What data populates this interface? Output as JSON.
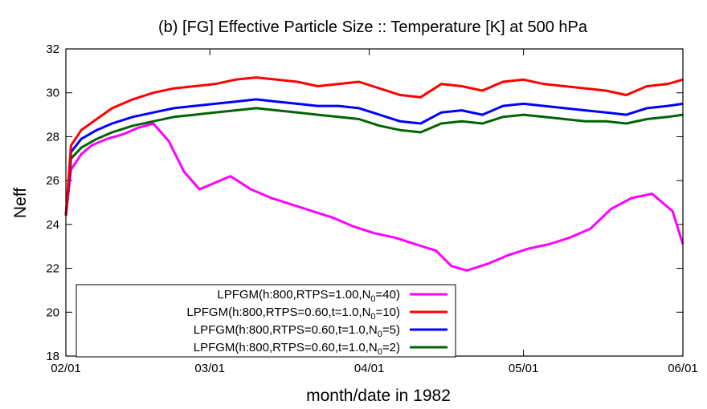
{
  "chart_data": {
    "type": "line",
    "title": "(b) [FG] Effective Particle Size :: Temperature [K] at 500 hPa",
    "xlabel": "month/date in 1982",
    "ylabel": "Neff",
    "xlim": [
      "1982-02-01",
      "1982-06-01"
    ],
    "ylim": [
      18,
      32
    ],
    "yticks": [
      18,
      20,
      22,
      24,
      26,
      28,
      30,
      32
    ],
    "xticks": [
      {
        "date": "1982-02-01",
        "label": "02/01"
      },
      {
        "date": "1982-03-01",
        "label": "03/01"
      },
      {
        "date": "1982-04-01",
        "label": "04/01"
      },
      {
        "date": "1982-05-01",
        "label": "05/01"
      },
      {
        "date": "1982-06-01",
        "label": "06/01"
      }
    ],
    "grid": false,
    "legend_position": "bottom-left",
    "series": [
      {
        "name": "LPFGM(h:800,RTPS=1.00,N",
        "subscript": "0",
        "suffix": "=40)",
        "color": "#ff00ff",
        "x": [
          "1982-02-01",
          "1982-02-02",
          "1982-02-04",
          "1982-02-06",
          "1982-02-09",
          "1982-02-12",
          "1982-02-15",
          "1982-02-18",
          "1982-02-21",
          "1982-02-24",
          "1982-02-27",
          "1982-03-01",
          "1982-03-05",
          "1982-03-09",
          "1982-03-13",
          "1982-03-17",
          "1982-03-21",
          "1982-03-25",
          "1982-03-29",
          "1982-04-02",
          "1982-04-06",
          "1982-04-10",
          "1982-04-14",
          "1982-04-17",
          "1982-04-20",
          "1982-04-24",
          "1982-04-28",
          "1982-05-02",
          "1982-05-06",
          "1982-05-10",
          "1982-05-14",
          "1982-05-18",
          "1982-05-22",
          "1982-05-26",
          "1982-05-30",
          "1982-06-01"
        ],
        "y": [
          24.4,
          26.5,
          27.2,
          27.6,
          27.9,
          28.1,
          28.4,
          28.6,
          27.8,
          26.4,
          25.6,
          25.8,
          26.2,
          25.6,
          25.2,
          24.9,
          24.6,
          24.3,
          23.9,
          23.6,
          23.4,
          23.1,
          22.8,
          22.1,
          21.9,
          22.2,
          22.6,
          22.9,
          23.1,
          23.4,
          23.8,
          24.7,
          25.2,
          25.4,
          24.6,
          23.1
        ]
      },
      {
        "name": "LPFGM(h:800,RTPS=0.60,t=1.0,N",
        "subscript": "0",
        "suffix": "=10)",
        "color": "#ff0000",
        "x": [
          "1982-02-01",
          "1982-02-02",
          "1982-02-04",
          "1982-02-07",
          "1982-02-10",
          "1982-02-14",
          "1982-02-18",
          "1982-02-22",
          "1982-02-26",
          "1982-03-02",
          "1982-03-06",
          "1982-03-10",
          "1982-03-14",
          "1982-03-18",
          "1982-03-22",
          "1982-03-26",
          "1982-03-30",
          "1982-04-03",
          "1982-04-07",
          "1982-04-11",
          "1982-04-15",
          "1982-04-19",
          "1982-04-23",
          "1982-04-27",
          "1982-05-01",
          "1982-05-05",
          "1982-05-09",
          "1982-05-13",
          "1982-05-17",
          "1982-05-21",
          "1982-05-25",
          "1982-05-29",
          "1982-06-01"
        ],
        "y": [
          24.4,
          27.6,
          28.3,
          28.8,
          29.3,
          29.7,
          30.0,
          30.2,
          30.3,
          30.4,
          30.6,
          30.7,
          30.6,
          30.5,
          30.3,
          30.4,
          30.5,
          30.2,
          29.9,
          29.8,
          30.4,
          30.3,
          30.1,
          30.5,
          30.6,
          30.4,
          30.3,
          30.2,
          30.1,
          29.9,
          30.3,
          30.4,
          30.6
        ]
      },
      {
        "name": "LPFGM(h:800,RTPS=0.60,t=1.0,N",
        "subscript": "0",
        "suffix": "=5)",
        "color": "#0000ff",
        "x": [
          "1982-02-01",
          "1982-02-02",
          "1982-02-04",
          "1982-02-07",
          "1982-02-10",
          "1982-02-14",
          "1982-02-18",
          "1982-02-22",
          "1982-02-26",
          "1982-03-02",
          "1982-03-06",
          "1982-03-10",
          "1982-03-14",
          "1982-03-18",
          "1982-03-22",
          "1982-03-26",
          "1982-03-30",
          "1982-04-03",
          "1982-04-07",
          "1982-04-11",
          "1982-04-15",
          "1982-04-19",
          "1982-04-23",
          "1982-04-27",
          "1982-05-01",
          "1982-05-05",
          "1982-05-09",
          "1982-05-13",
          "1982-05-17",
          "1982-05-21",
          "1982-05-25",
          "1982-05-29",
          "1982-06-01"
        ],
        "y": [
          24.4,
          27.3,
          27.9,
          28.3,
          28.6,
          28.9,
          29.1,
          29.3,
          29.4,
          29.5,
          29.6,
          29.7,
          29.6,
          29.5,
          29.4,
          29.4,
          29.3,
          29.0,
          28.7,
          28.6,
          29.1,
          29.2,
          29.0,
          29.4,
          29.5,
          29.4,
          29.3,
          29.2,
          29.1,
          29.0,
          29.3,
          29.4,
          29.5
        ]
      },
      {
        "name": "LPFGM(h:800,RTPS=0.60,t=1.0,N",
        "subscript": "0",
        "suffix": "=2)",
        "color": "#006400",
        "x": [
          "1982-02-01",
          "1982-02-02",
          "1982-02-04",
          "1982-02-07",
          "1982-02-10",
          "1982-02-14",
          "1982-02-18",
          "1982-02-22",
          "1982-02-26",
          "1982-03-02",
          "1982-03-06",
          "1982-03-10",
          "1982-03-14",
          "1982-03-18",
          "1982-03-22",
          "1982-03-26",
          "1982-03-30",
          "1982-04-03",
          "1982-04-07",
          "1982-04-11",
          "1982-04-15",
          "1982-04-19",
          "1982-04-23",
          "1982-04-27",
          "1982-05-01",
          "1982-05-05",
          "1982-05-09",
          "1982-05-13",
          "1982-05-17",
          "1982-05-21",
          "1982-05-25",
          "1982-05-29",
          "1982-06-01"
        ],
        "y": [
          24.4,
          27.0,
          27.5,
          27.9,
          28.2,
          28.5,
          28.7,
          28.9,
          29.0,
          29.1,
          29.2,
          29.3,
          29.2,
          29.1,
          29.0,
          28.9,
          28.8,
          28.5,
          28.3,
          28.2,
          28.6,
          28.7,
          28.6,
          28.9,
          29.0,
          28.9,
          28.8,
          28.7,
          28.7,
          28.6,
          28.8,
          28.9,
          29.0
        ]
      }
    ]
  }
}
